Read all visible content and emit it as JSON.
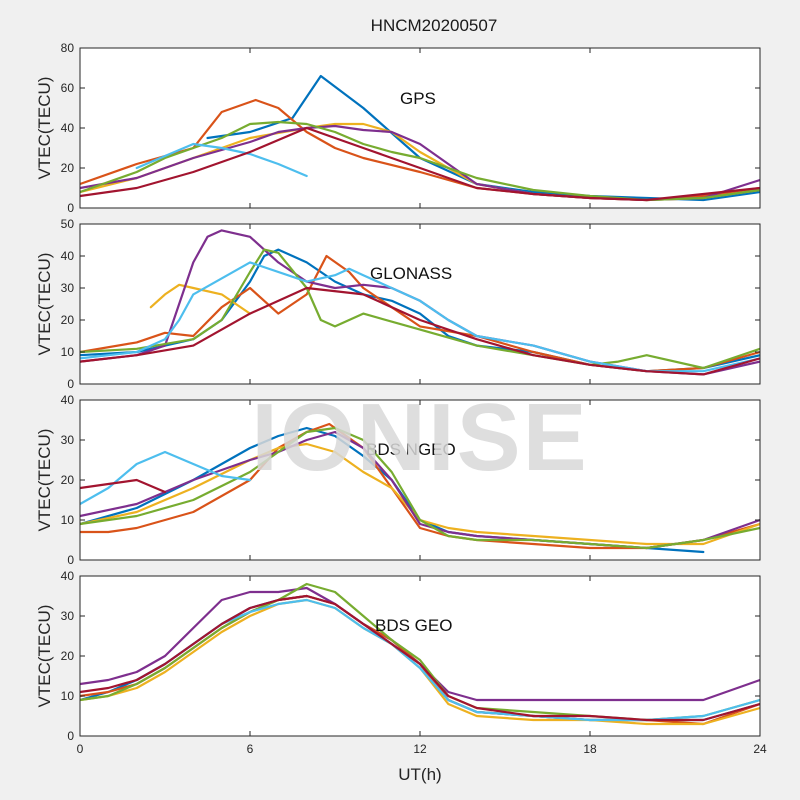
{
  "title": "HNCM20200507",
  "watermark": "IONISE",
  "colors": [
    "#0072BD",
    "#D95319",
    "#EDB120",
    "#7E2F8E",
    "#77AC30",
    "#4DBEEE",
    "#A2142F"
  ],
  "chart_data": [
    {
      "type": "line",
      "label": "GPS",
      "ylabel": "VTEC(TECU)",
      "ylim": [
        0,
        80
      ],
      "yticks": [
        0,
        20,
        40,
        60,
        80
      ],
      "xlim": [
        0,
        24
      ],
      "xticks": [
        0,
        6,
        12,
        18,
        24
      ],
      "series": [
        {
          "x": [
            4.5,
            6,
            7.5,
            8.5,
            10,
            12,
            14,
            16,
            18,
            20,
            22,
            24
          ],
          "y": [
            35,
            38,
            45,
            66,
            50,
            25,
            12,
            8,
            6,
            5,
            4,
            8
          ]
        },
        {
          "x": [
            0,
            2,
            4,
            5,
            6.2,
            7,
            8,
            9,
            10,
            12,
            14,
            16,
            18,
            20,
            22,
            24
          ],
          "y": [
            12,
            22,
            30,
            48,
            54,
            50,
            38,
            30,
            25,
            18,
            10,
            7,
            5,
            4,
            6,
            10
          ]
        },
        {
          "x": [
            0,
            2,
            4,
            6,
            8,
            9,
            10,
            11,
            12,
            14,
            16,
            18,
            20,
            22,
            24
          ],
          "y": [
            8,
            15,
            25,
            35,
            40,
            42,
            42,
            38,
            28,
            12,
            7,
            5,
            4,
            5,
            9
          ]
        },
        {
          "x": [
            0,
            2,
            4,
            6,
            7,
            8,
            9,
            10,
            11,
            12,
            13,
            14,
            16,
            18,
            20,
            22,
            24
          ],
          "y": [
            10,
            15,
            25,
            33,
            38,
            40,
            41,
            39,
            38,
            32,
            22,
            12,
            7,
            5,
            4,
            5,
            14
          ]
        },
        {
          "x": [
            0,
            2,
            3,
            4,
            5,
            6,
            7,
            8,
            9,
            10,
            11,
            12,
            14,
            16,
            18,
            20,
            22,
            24
          ],
          "y": [
            8,
            18,
            25,
            30,
            35,
            42,
            43,
            42,
            38,
            32,
            28,
            25,
            15,
            9,
            6,
            4,
            5,
            9
          ]
        },
        {
          "x": [
            2,
            3,
            4,
            5,
            6,
            7,
            8
          ],
          "y": [
            20,
            26,
            32,
            30,
            27,
            22,
            16
          ]
        },
        {
          "x": [
            0,
            2,
            4,
            6,
            8,
            10,
            12,
            14,
            16,
            18,
            20,
            22,
            24
          ],
          "y": [
            6,
            10,
            18,
            28,
            40,
            30,
            20,
            10,
            7,
            5,
            4,
            7,
            10
          ]
        }
      ]
    },
    {
      "type": "line",
      "label": "GLONASS",
      "ylabel": "VTEC(TECU)",
      "ylim": [
        0,
        50
      ],
      "yticks": [
        0,
        10,
        20,
        30,
        40,
        50
      ],
      "xlim": [
        0,
        24
      ],
      "xticks": [
        0,
        6,
        12,
        18,
        24
      ],
      "series": [
        {
          "x": [
            0,
            2,
            4,
            5,
            6,
            6.5,
            7,
            8,
            9,
            10,
            11,
            12,
            13,
            14,
            16,
            18,
            20,
            22,
            24
          ],
          "y": [
            9,
            10,
            14,
            20,
            32,
            40,
            42,
            38,
            32,
            28,
            26,
            22,
            15,
            12,
            10,
            6,
            4,
            5,
            9
          ]
        },
        {
          "x": [
            0,
            2,
            3,
            4,
            5,
            6,
            7,
            8,
            8.7,
            9.5,
            10,
            12,
            14,
            16,
            18,
            20,
            22,
            24
          ],
          "y": [
            10,
            13,
            16,
            15,
            24,
            30,
            22,
            28,
            40,
            35,
            30,
            18,
            15,
            10,
            6,
            4,
            5,
            10
          ]
        },
        {
          "x": [
            2.5,
            3,
            3.5,
            4,
            5,
            6
          ],
          "y": [
            24,
            28,
            31,
            30,
            28,
            22
          ]
        },
        {
          "x": [
            0,
            1,
            2,
            3,
            4,
            4.5,
            5,
            6,
            7,
            8,
            9,
            10,
            11,
            12,
            13,
            14,
            16,
            18,
            20,
            22,
            24
          ],
          "y": [
            7,
            8,
            9,
            12,
            38,
            46,
            48,
            46,
            38,
            32,
            30,
            31,
            30,
            26,
            20,
            15,
            12,
            7,
            4,
            3,
            7
          ]
        },
        {
          "x": [
            0,
            2,
            4,
            5,
            6,
            6.5,
            7,
            8,
            8.5,
            9,
            10,
            12,
            14,
            16,
            18,
            19,
            20,
            22,
            24
          ],
          "y": [
            10,
            11,
            14,
            20,
            35,
            42,
            41,
            30,
            20,
            18,
            22,
            17,
            12,
            9,
            6,
            7,
            9,
            5,
            11
          ]
        },
        {
          "x": [
            0,
            1,
            2,
            3,
            3.5,
            4,
            6,
            8,
            9,
            9.5,
            10,
            11,
            12,
            13,
            14,
            16,
            18,
            20,
            22,
            24
          ],
          "y": [
            8,
            9,
            10,
            14,
            20,
            28,
            38,
            32,
            34,
            36,
            34,
            30,
            26,
            20,
            15,
            12,
            7,
            4,
            4,
            8
          ]
        },
        {
          "x": [
            0,
            2,
            4,
            6,
            8,
            10,
            12,
            14,
            16,
            18,
            20,
            22,
            24
          ],
          "y": [
            7,
            9,
            12,
            22,
            30,
            28,
            20,
            14,
            9,
            6,
            4,
            3,
            8
          ]
        }
      ]
    },
    {
      "type": "line",
      "label": "BDS NGEO",
      "ylabel": "VTEC(TECU)",
      "ylim": [
        0,
        40
      ],
      "yticks": [
        0,
        10,
        20,
        30,
        40
      ],
      "xlim": [
        0,
        24
      ],
      "xticks": [
        0,
        6,
        12,
        18,
        24
      ],
      "series": [
        {
          "x": [
            0,
            2,
            4,
            6,
            7,
            8,
            9,
            10,
            11,
            12,
            13,
            14,
            16,
            18,
            20,
            22
          ],
          "y": [
            9,
            13,
            20,
            28,
            31,
            33,
            31,
            26,
            20,
            10,
            7,
            6,
            5,
            4,
            3,
            2
          ]
        },
        {
          "x": [
            0,
            1,
            2,
            4,
            6,
            7,
            8,
            8.8,
            10,
            11,
            12,
            13,
            14,
            16,
            18,
            20,
            22,
            24
          ],
          "y": [
            7,
            7,
            8,
            12,
            20,
            28,
            32,
            34,
            28,
            18,
            8,
            6,
            5,
            4,
            3,
            3,
            5,
            9
          ]
        },
        {
          "x": [
            0,
            2,
            4,
            6,
            7,
            8,
            9,
            10,
            11,
            12,
            13,
            14,
            16,
            18,
            20,
            22,
            24
          ],
          "y": [
            9,
            12,
            18,
            25,
            28,
            29,
            27,
            22,
            18,
            10,
            8,
            7,
            6,
            5,
            4,
            4,
            9
          ]
        },
        {
          "x": [
            0,
            2,
            4,
            6,
            7,
            8,
            9,
            10,
            11,
            12,
            13,
            14,
            16,
            18,
            20,
            22,
            24
          ],
          "y": [
            11,
            14,
            20,
            25,
            27,
            30,
            32,
            28,
            20,
            9,
            7,
            6,
            5,
            4,
            3,
            5,
            10
          ]
        },
        {
          "x": [
            0,
            2,
            4,
            6,
            7,
            8,
            9,
            10,
            11,
            12,
            13,
            14,
            16,
            18,
            20,
            22,
            24
          ],
          "y": [
            9,
            11,
            15,
            22,
            27,
            32,
            33,
            30,
            22,
            10,
            6,
            5,
            5,
            4,
            3,
            5,
            8
          ]
        },
        {
          "x": [
            0,
            1,
            2,
            3,
            4,
            5,
            6
          ],
          "y": [
            14,
            18,
            24,
            27,
            24,
            21,
            20
          ]
        },
        {
          "x": [
            0,
            1,
            2,
            3
          ],
          "y": [
            18,
            19,
            20,
            17
          ]
        }
      ]
    },
    {
      "type": "line",
      "label": "BDS GEO",
      "ylabel": "VTEC(TECU)",
      "ylim": [
        0,
        40
      ],
      "yticks": [
        0,
        10,
        20,
        30,
        40
      ],
      "xlim": [
        0,
        24
      ],
      "xticks": [
        0,
        6,
        12,
        18,
        24
      ],
      "series": [
        {
          "x": [
            0,
            1,
            2,
            3,
            4,
            5,
            6,
            7,
            8,
            9,
            10,
            11,
            12,
            13,
            14,
            16,
            18,
            20,
            22,
            24
          ],
          "y": [
            9,
            11,
            14,
            18,
            23,
            28,
            32,
            34,
            35,
            33,
            28,
            24,
            18,
            9,
            6,
            5,
            4,
            4,
            4,
            8
          ]
        },
        {
          "x": [
            0,
            1,
            2,
            3,
            4,
            5,
            6,
            7,
            8,
            9,
            10,
            11,
            12,
            13,
            14,
            16,
            18,
            20,
            22,
            24
          ],
          "y": [
            10,
            11,
            13,
            17,
            22,
            27,
            31,
            34,
            35,
            33,
            28,
            24,
            18,
            9,
            6,
            5,
            4,
            4,
            3,
            8
          ]
        },
        {
          "x": [
            0,
            1,
            2,
            3,
            4,
            5,
            6,
            7,
            8,
            9,
            10,
            11,
            12,
            13,
            14,
            16,
            18,
            20,
            22,
            24
          ],
          "y": [
            9,
            10,
            12,
            16,
            21,
            26,
            30,
            33,
            34,
            32,
            27,
            23,
            17,
            8,
            5,
            4,
            4,
            3,
            3,
            7
          ]
        },
        {
          "x": [
            0,
            1,
            2,
            3,
            4,
            5,
            6,
            7,
            8,
            9,
            10,
            11,
            12,
            13,
            14,
            16,
            18,
            20,
            22,
            24
          ],
          "y": [
            13,
            14,
            16,
            20,
            27,
            34,
            36,
            36,
            37,
            33,
            28,
            23,
            18,
            11,
            9,
            9,
            9,
            9,
            9,
            14
          ]
        },
        {
          "x": [
            0,
            1,
            2,
            3,
            4,
            5,
            6,
            7,
            8,
            9,
            10,
            11,
            12,
            13,
            14,
            16,
            18,
            20,
            22,
            24
          ],
          "y": [
            9,
            10,
            13,
            17,
            22,
            27,
            31,
            34,
            38,
            36,
            30,
            24,
            19,
            10,
            7,
            6,
            5,
            4,
            5,
            9
          ]
        },
        {
          "x": [
            2,
            3,
            4,
            5,
            6,
            7,
            8,
            9,
            10,
            11,
            12,
            13,
            14,
            16,
            18,
            20,
            22,
            24
          ],
          "y": [
            14,
            18,
            23,
            28,
            31,
            33,
            34,
            32,
            27,
            23,
            17,
            9,
            6,
            5,
            4,
            4,
            5,
            9
          ]
        },
        {
          "x": [
            0,
            1,
            2,
            3,
            4,
            5,
            6,
            7,
            8,
            9,
            10,
            11,
            12,
            13,
            14,
            16,
            18,
            20,
            22,
            24
          ],
          "y": [
            11,
            12,
            14,
            18,
            23,
            28,
            32,
            34,
            35,
            33,
            28,
            23,
            18,
            10,
            7,
            5,
            5,
            4,
            4,
            8
          ]
        }
      ]
    }
  ],
  "xlabel": "UT(h)"
}
